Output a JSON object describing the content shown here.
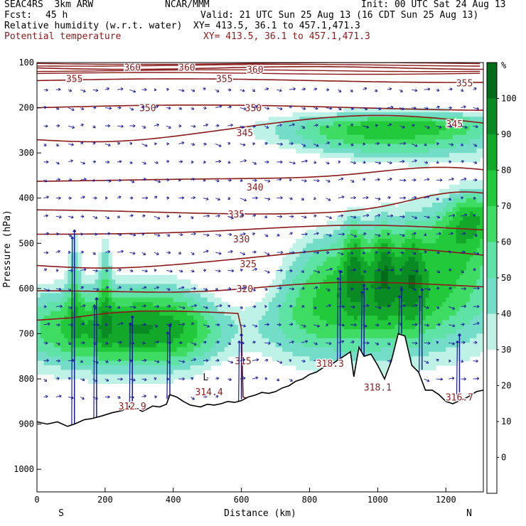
{
  "header": {
    "model": "SEAC4RS  3km ARW",
    "org": "NCAR/MMM",
    "init": "Init: 00 UTC Sat 24 Aug 13",
    "fcst_label": "Fcst:",
    "fcst_value": "45 h",
    "valid": "Valid: 21 UTC Sun 25 Aug 13 (16 CDT Sun 25 Aug 13)",
    "field1": "Relative humidity (w.r.t. water)",
    "xy1": "XY= 413.5, 36.1 to 457.1,471.3",
    "field2": "Potential temperature",
    "xy2": "XY= 413.5, 36.1 to 457.1,471.3"
  },
  "chart_data": {
    "type": "heatmap",
    "xlabel": "Distance (km)",
    "ylabel": "Pressure (hPa)",
    "xlim": [
      0,
      1310
    ],
    "ylim": [
      1050,
      100
    ],
    "x_ticks": [
      0,
      200,
      400,
      600,
      800,
      1000,
      1200
    ],
    "y_ticks": [
      100,
      200,
      300,
      400,
      500,
      600,
      700,
      800,
      900,
      1000
    ],
    "x_end_labels": {
      "left": "S",
      "right": "N"
    },
    "colorbar": {
      "unit": "%",
      "levels": [
        -10,
        0,
        10,
        20,
        30,
        40,
        50,
        60,
        70,
        80,
        90,
        100,
        110
      ],
      "tick_labels": [
        0,
        10,
        20,
        30,
        40,
        50,
        60,
        70,
        80,
        90,
        100
      ],
      "colors": [
        "#ffffff",
        "#ffffff",
        "#ffffff",
        "#ffffff",
        "#bff2e6",
        "#73ddc8",
        "#5fe2a6",
        "#3fdc63",
        "#22c93a",
        "#13a82a",
        "#0a8a22",
        "#006b1a"
      ]
    },
    "theta_contours": [
      {
        "value": 360,
        "labels": [
          {
            "x": 280,
            "p": 110
          },
          {
            "x": 440,
            "p": 110
          },
          {
            "x": 640,
            "p": 115
          }
        ]
      },
      {
        "value": 355,
        "labels": [
          {
            "x": 110,
            "p": 135
          },
          {
            "x": 550,
            "p": 135
          },
          {
            "x": 1255,
            "p": 145
          }
        ]
      },
      {
        "value": 350,
        "labels": [
          {
            "x": 325,
            "p": 200
          },
          {
            "x": 635,
            "p": 200
          }
        ]
      },
      {
        "value": 345,
        "labels": [
          {
            "x": 610,
            "p": 255
          },
          {
            "x": 1225,
            "p": 235
          }
        ]
      },
      {
        "value": 340,
        "labels": [
          {
            "x": 640,
            "p": 375
          }
        ]
      },
      {
        "value": 335,
        "labels": [
          {
            "x": 585,
            "p": 435
          }
        ]
      },
      {
        "value": 330,
        "labels": [
          {
            "x": 600,
            "p": 490
          }
        ]
      },
      {
        "value": 325,
        "labels": [
          {
            "x": 620,
            "p": 545
          }
        ]
      },
      {
        "value": 320,
        "labels": [
          {
            "x": 610,
            "p": 600
          }
        ]
      },
      {
        "value": 315,
        "labels": [
          {
            "x": 605,
            "p": 760
          }
        ]
      }
    ],
    "annotations": [
      {
        "text": "312.9",
        "x": 280,
        "p": 860
      },
      {
        "text": "L",
        "x": 495,
        "p": 795
      },
      {
        "text": "314.4",
        "x": 505,
        "p": 828
      },
      {
        "text": "318.3",
        "x": 860,
        "p": 765
      },
      {
        "text": "318.1",
        "x": 1000,
        "p": 818
      },
      {
        "text": "316.7",
        "x": 1240,
        "p": 840
      }
    ],
    "terrain_hpa": [
      [
        0,
        895
      ],
      [
        30,
        900
      ],
      [
        60,
        895
      ],
      [
        90,
        905
      ],
      [
        110,
        900
      ],
      [
        140,
        890
      ],
      [
        160,
        888
      ],
      [
        190,
        882
      ],
      [
        220,
        875
      ],
      [
        250,
        870
      ],
      [
        270,
        862
      ],
      [
        290,
        866
      ],
      [
        310,
        872
      ],
      [
        340,
        860
      ],
      [
        360,
        862
      ],
      [
        380,
        856
      ],
      [
        390,
        835
      ],
      [
        410,
        840
      ],
      [
        430,
        850
      ],
      [
        450,
        858
      ],
      [
        480,
        862
      ],
      [
        500,
        856
      ],
      [
        520,
        858
      ],
      [
        540,
        855
      ],
      [
        560,
        850
      ],
      [
        580,
        852
      ],
      [
        600,
        848
      ],
      [
        620,
        840
      ],
      [
        640,
        836
      ],
      [
        660,
        830
      ],
      [
        680,
        832
      ],
      [
        700,
        828
      ],
      [
        720,
        820
      ],
      [
        740,
        815
      ],
      [
        760,
        805
      ],
      [
        780,
        800
      ],
      [
        800,
        790
      ],
      [
        820,
        785
      ],
      [
        840,
        775
      ],
      [
        860,
        770
      ],
      [
        880,
        760
      ],
      [
        900,
        750
      ],
      [
        920,
        740
      ],
      [
        930,
        795
      ],
      [
        945,
        730
      ],
      [
        960,
        750
      ],
      [
        980,
        745
      ],
      [
        1000,
        770
      ],
      [
        1020,
        800
      ],
      [
        1040,
        760
      ],
      [
        1060,
        700
      ],
      [
        1080,
        705
      ],
      [
        1100,
        770
      ],
      [
        1120,
        785
      ],
      [
        1140,
        825
      ],
      [
        1160,
        825
      ],
      [
        1180,
        835
      ],
      [
        1200,
        850
      ],
      [
        1220,
        855
      ],
      [
        1240,
        848
      ],
      [
        1260,
        842
      ],
      [
        1290,
        828
      ],
      [
        1310,
        825
      ]
    ]
  }
}
